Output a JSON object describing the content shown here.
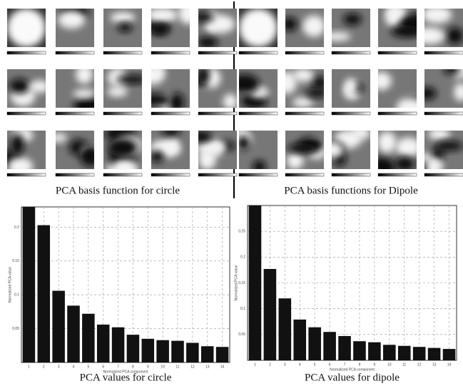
{
  "captions": {
    "circle_basis": "PCA basis function for circle",
    "dipole_basis": "PCA basis functions for Dipole"
  },
  "chart_data": [
    {
      "type": "bar",
      "caption": "PCA values for circle",
      "y_label": "Normalized PCA value",
      "x_label": "Normalized PCA component",
      "categories": [
        "1",
        "2",
        "3",
        "4",
        "5",
        "6",
        "7",
        "8",
        "9",
        "10",
        "11",
        "12",
        "13",
        "14"
      ],
      "values": [
        0.23,
        0.203,
        0.106,
        0.084,
        0.072,
        0.056,
        0.052,
        0.041,
        0.035,
        0.033,
        0.032,
        0.029,
        0.024,
        0.023
      ],
      "color": "#111111",
      "ylim": [
        0,
        0.23
      ],
      "yticks": [
        0.05,
        0.1,
        0.15,
        0.2
      ],
      "grid": true
    },
    {
      "type": "bar",
      "caption": "PCA values for dipole",
      "y_label": "Normalized PCA value",
      "x_label": "Normalized PCA component",
      "categories": [
        "1",
        "2",
        "3",
        "4",
        "5",
        "6",
        "7",
        "8",
        "9",
        "10",
        "11",
        "12",
        "13",
        "14"
      ],
      "values": [
        0.3,
        0.177,
        0.12,
        0.079,
        0.064,
        0.055,
        0.047,
        0.037,
        0.035,
        0.03,
        0.028,
        0.026,
        0.024,
        0.022
      ],
      "color": "#111111",
      "ylim": [
        0,
        0.3
      ],
      "yticks": [
        0.05,
        0.1,
        0.15,
        0.2,
        0.25
      ],
      "grid": true
    }
  ]
}
